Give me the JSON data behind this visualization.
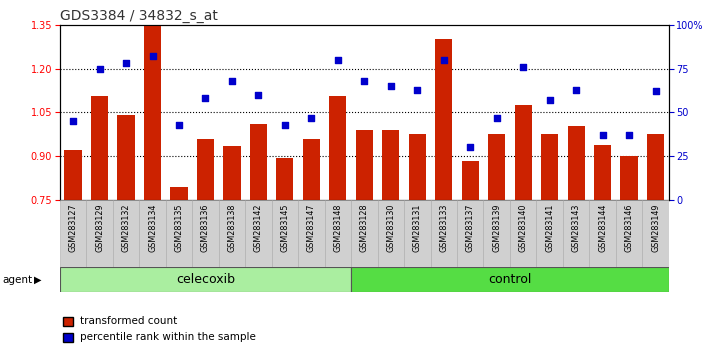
{
  "title": "GDS3384 / 34832_s_at",
  "samples": [
    "GSM283127",
    "GSM283129",
    "GSM283132",
    "GSM283134",
    "GSM283135",
    "GSM283136",
    "GSM283138",
    "GSM283142",
    "GSM283145",
    "GSM283147",
    "GSM283148",
    "GSM283128",
    "GSM283130",
    "GSM283131",
    "GSM283133",
    "GSM283137",
    "GSM283139",
    "GSM283140",
    "GSM283141",
    "GSM283143",
    "GSM283144",
    "GSM283146",
    "GSM283149"
  ],
  "transformed_count": [
    0.92,
    1.105,
    1.04,
    1.35,
    0.795,
    0.96,
    0.935,
    1.01,
    0.895,
    0.96,
    1.105,
    0.99,
    0.99,
    0.975,
    1.3,
    0.885,
    0.975,
    1.075,
    0.975,
    1.005,
    0.94,
    0.9,
    0.975
  ],
  "percentile_rank": [
    45,
    75,
    78,
    82,
    43,
    58,
    68,
    60,
    43,
    47,
    80,
    68,
    65,
    63,
    80,
    30,
    47,
    76,
    57,
    63,
    37,
    37,
    62
  ],
  "celecoxib_count": 11,
  "control_count": 12,
  "ylim_left": [
    0.75,
    1.35
  ],
  "ylim_right": [
    0,
    100
  ],
  "yticks_left": [
    0.75,
    0.9,
    1.05,
    1.2,
    1.35
  ],
  "yticks_right": [
    0,
    25,
    50,
    75,
    100
  ],
  "bar_color": "#cc2200",
  "dot_color": "#0000cc",
  "plot_bg": "#ffffff",
  "xtick_bg": "#d0d0d0",
  "celecoxib_color": "#aaeea0",
  "control_color": "#55dd44",
  "agent_label": "agent",
  "celecoxib_label": "celecoxib",
  "control_label": "control",
  "legend_bar_label": "transformed count",
  "legend_dot_label": "percentile rank within the sample",
  "title_fontsize": 10,
  "tick_fontsize": 7,
  "xlabel_fontsize": 5.8,
  "label_fontsize": 9,
  "grid_dotted_vals": [
    0.9,
    1.05,
    1.2
  ]
}
